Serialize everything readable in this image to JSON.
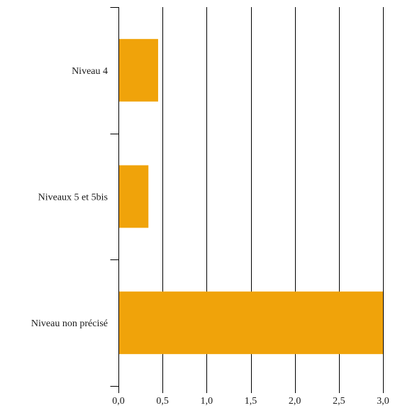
{
  "chart_data": {
    "type": "bar",
    "orientation": "horizontal",
    "categories": [
      "Niveau 4",
      "Niveaux 5 et 5bis",
      "Niveau non précisé"
    ],
    "values": [
      0.45,
      0.34,
      3.0
    ],
    "bar_color": "#f0a30a",
    "xlim": [
      0,
      3.0
    ],
    "x_ticks": [
      0,
      0.5,
      1.0,
      1.5,
      2.0,
      2.5,
      3.0
    ],
    "x_tick_labels": [
      "0,0",
      "0,5",
      "1,0",
      "1,5",
      "2,0",
      "2,5",
      "3,0"
    ],
    "grid": true,
    "title": "",
    "xlabel": "",
    "ylabel": ""
  }
}
